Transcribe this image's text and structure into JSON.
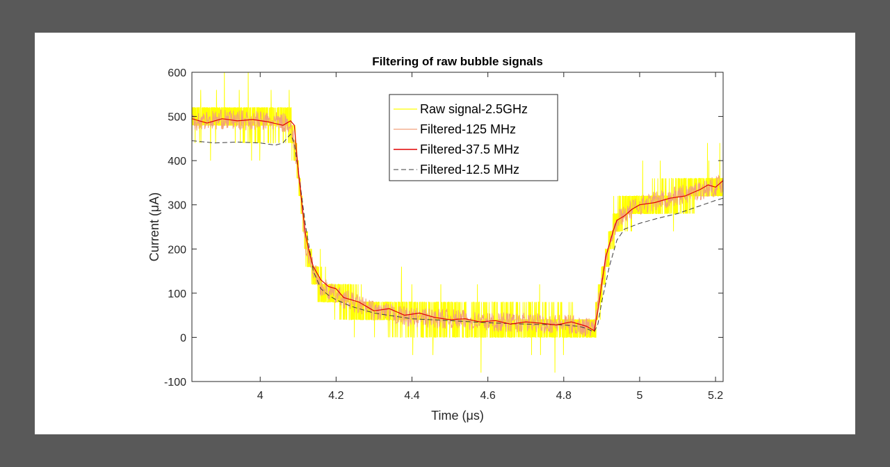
{
  "colors": {
    "background": "#595959",
    "figure": "#ffffff",
    "raw": "#ffff00",
    "f125": "#f2a07a",
    "f375": "#e00000",
    "f125b": "#3c3c3c"
  },
  "chart_data": {
    "type": "line",
    "title": "Filtering of raw bubble signals",
    "xlabel": "Time (μs)",
    "ylabel": "Current (μA)",
    "xlim": [
      3.82,
      5.22
    ],
    "ylim": [
      -100,
      600
    ],
    "xticks": [
      "4",
      "4.2",
      "4.4",
      "4.6",
      "4.8",
      "5",
      "5.2"
    ],
    "xtick_values": [
      4.0,
      4.2,
      4.4,
      4.6,
      4.8,
      5.0,
      5.2
    ],
    "yticks": [
      "-100",
      "0",
      "100",
      "200",
      "300",
      "400",
      "500",
      "600"
    ],
    "ytick_values": [
      -100,
      0,
      100,
      200,
      300,
      400,
      500,
      600
    ],
    "grid": false,
    "legend_position": "top-center",
    "series": [
      {
        "name": "Raw signal-2.5GHz",
        "style": "solid-thin",
        "note_envelope": "quantized 40 μA noise around filtered level",
        "x": [
          3.82,
          3.9,
          4.0,
          4.08,
          4.1,
          4.12,
          4.14,
          4.16,
          4.2,
          4.3,
          4.4,
          4.5,
          4.6,
          4.7,
          4.8,
          4.88,
          4.9,
          4.92,
          4.95,
          5.0,
          5.1,
          5.2,
          5.22
        ],
        "y": [
          490,
          495,
          490,
          485,
          380,
          200,
          150,
          110,
          90,
          60,
          45,
          40,
          35,
          35,
          30,
          20,
          120,
          220,
          280,
          300,
          320,
          340,
          350
        ]
      },
      {
        "name": "Filtered-125 MHz",
        "style": "solid-thin",
        "x": [
          3.82,
          3.9,
          4.0,
          4.08,
          4.1,
          4.12,
          4.14,
          4.16,
          4.2,
          4.3,
          4.4,
          4.5,
          4.6,
          4.7,
          4.8,
          4.88,
          4.9,
          4.92,
          4.95,
          5.0,
          5.1,
          5.2,
          5.22
        ],
        "y": [
          490,
          493,
          490,
          485,
          380,
          210,
          155,
          115,
          95,
          60,
          45,
          42,
          35,
          33,
          30,
          22,
          130,
          220,
          275,
          300,
          320,
          342,
          350
        ]
      },
      {
        "name": "Filtered-37.5 MHz",
        "style": "solid",
        "x": [
          3.82,
          3.86,
          3.9,
          3.94,
          3.98,
          4.02,
          4.06,
          4.08,
          4.09,
          4.1,
          4.11,
          4.12,
          4.13,
          4.14,
          4.15,
          4.16,
          4.18,
          4.2,
          4.22,
          4.26,
          4.3,
          4.34,
          4.38,
          4.42,
          4.46,
          4.5,
          4.54,
          4.58,
          4.62,
          4.66,
          4.7,
          4.74,
          4.78,
          4.82,
          4.86,
          4.88,
          4.89,
          4.9,
          4.91,
          4.92,
          4.93,
          4.94,
          4.96,
          4.98,
          5.0,
          5.04,
          5.08,
          5.12,
          5.16,
          5.18,
          5.2,
          5.22
        ],
        "y": [
          495,
          485,
          495,
          490,
          493,
          488,
          480,
          490,
          480,
          380,
          300,
          230,
          190,
          160,
          145,
          130,
          115,
          110,
          90,
          80,
          60,
          65,
          50,
          55,
          45,
          40,
          42,
          35,
          38,
          30,
          35,
          32,
          28,
          35,
          25,
          15,
          60,
          120,
          180,
          210,
          240,
          265,
          275,
          290,
          300,
          305,
          315,
          320,
          335,
          345,
          340,
          355
        ]
      },
      {
        "name": "Filtered-12.5 MHz",
        "style": "dashed",
        "x": [
          3.82,
          3.88,
          3.94,
          4.0,
          4.04,
          4.06,
          4.08,
          4.09,
          4.1,
          4.12,
          4.14,
          4.16,
          4.18,
          4.2,
          4.24,
          4.3,
          4.4,
          4.5,
          4.6,
          4.7,
          4.8,
          4.84,
          4.86,
          4.88,
          4.89,
          4.9,
          4.92,
          4.94,
          4.96,
          5.0,
          5.05,
          5.1,
          5.15,
          5.2,
          5.22
        ],
        "y": [
          445,
          440,
          442,
          440,
          435,
          440,
          460,
          440,
          380,
          250,
          150,
          110,
          95,
          85,
          70,
          55,
          42,
          38,
          33,
          30,
          28,
          25,
          20,
          12,
          30,
          80,
          160,
          220,
          245,
          258,
          270,
          280,
          295,
          310,
          315
        ]
      }
    ]
  }
}
